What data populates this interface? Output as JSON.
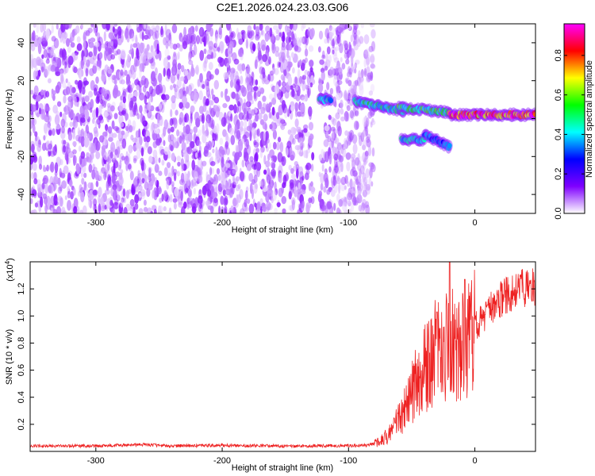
{
  "title": "C2E1.2026.024.23.03.G06",
  "chart_data": [
    {
      "type": "heatmap",
      "name": "spectrogram",
      "xlabel": "Height of straight line (km)",
      "ylabel": "Frequency (Hz)",
      "xlim": [
        -352,
        48
      ],
      "ylim": [
        -50,
        50
      ],
      "x_ticks": [
        -300,
        -200,
        -100,
        0
      ],
      "x_tick_labels": [
        "-300",
        "-200",
        "-100",
        "0"
      ],
      "y_ticks": [
        -40,
        -20,
        0,
        20,
        40
      ],
      "y_tick_labels": [
        "-40",
        "-20",
        "0",
        "20",
        "40"
      ],
      "noise_regions": [
        {
          "x_from": -352,
          "x_to": -128,
          "amplitude": [
            0.02,
            0.13
          ]
        },
        {
          "x_from": -123,
          "x_to": -80,
          "amplitude": [
            0.02,
            0.12
          ]
        }
      ],
      "signal_segments": [
        {
          "x_from": -123,
          "x_to": -114,
          "freq": 10,
          "amplitude": 0.45
        },
        {
          "x_from": -95,
          "x_to": -55,
          "freq_from": 9,
          "freq_to": 4,
          "amplitude": 0.5
        },
        {
          "x_from": -60,
          "x_to": -20,
          "freq_from": 6,
          "freq_to": 3,
          "amplitude": 0.55
        },
        {
          "x_from": -58,
          "x_to": -40,
          "freq": -11,
          "amplitude": 0.45
        },
        {
          "x_from": -40,
          "x_to": -20,
          "freq_from": -8,
          "freq_to": -15,
          "amplitude": 0.35
        },
        {
          "x_from": -20,
          "x_to": 48,
          "freq": 2,
          "amplitude": 0.9
        }
      ],
      "colorbar": {
        "label": "Normalized spectral amplitude",
        "range": [
          0,
          0.96
        ],
        "ticks": [
          0,
          0.2,
          0.4,
          0.6,
          0.8
        ],
        "tick_labels": [
          "0.0",
          "0.2",
          "0.4",
          "0.6",
          "0.8"
        ],
        "colors": [
          "#ffffff",
          "#7f00ff",
          "#0000ff",
          "#00ffff",
          "#00ff00",
          "#ffff00",
          "#ff0000",
          "#ff00ff"
        ]
      }
    },
    {
      "type": "line",
      "name": "snr",
      "xlabel": "Height of straight line (km)",
      "ylabel": "SNR (10 * v/v)",
      "scale_label": "(x10",
      "scale_exponent": "4",
      "scale_close": ")",
      "xlim": [
        -352,
        48
      ],
      "ylim": [
        0,
        14000
      ],
      "x_ticks": [
        -300,
        -200,
        -100,
        0
      ],
      "x_tick_labels": [
        "-300",
        "-200",
        "-100",
        "0"
      ],
      "y_ticks": [
        2000,
        4000,
        6000,
        8000,
        10000,
        12000
      ],
      "y_tick_labels": [
        "0.2",
        "0.4",
        "0.6",
        "0.8",
        "1.0",
        "1.2"
      ],
      "color": "#ee2222",
      "x": [
        -352,
        -300,
        -262,
        -240,
        -200,
        -150,
        -100,
        -85,
        -75,
        -70,
        -65,
        -60,
        -55,
        -50,
        -45,
        -40,
        -35,
        -30,
        -25,
        -20,
        -15,
        -10,
        -5,
        0,
        5,
        10,
        15,
        20,
        25,
        30,
        35,
        40,
        48
      ],
      "y": [
        400,
        400,
        500,
        400,
        450,
        400,
        420,
        450,
        700,
        1100,
        1600,
        2400,
        3200,
        4200,
        5600,
        6200,
        6800,
        7400,
        7000,
        8200,
        7800,
        8300,
        8800,
        9200,
        9700,
        10300,
        10800,
        11200,
        11500,
        11800,
        12000,
        12100,
        12200
      ],
      "spikes": [
        {
          "x": -30,
          "y": 10300
        },
        {
          "x": -20,
          "y": 14000
        },
        {
          "x": -8,
          "y": 12700
        },
        {
          "x": 10,
          "y": 10800
        }
      ]
    }
  ]
}
